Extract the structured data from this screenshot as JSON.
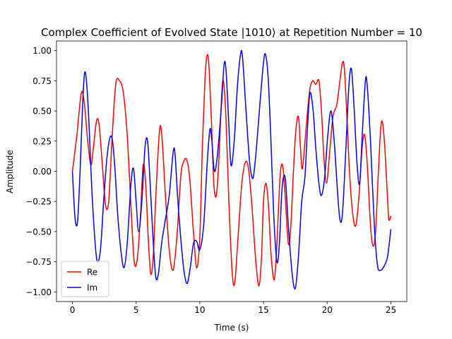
{
  "chart_data": {
    "type": "line",
    "title": "Complex Coefficient of Evolved State |1010⟩ at Repetition Number = 10",
    "xlabel": "Time (s)",
    "ylabel": "Amplitude",
    "xlim": [
      -1.25,
      26.25
    ],
    "ylim": [
      -1.08,
      1.08
    ],
    "xticks": [
      0,
      5,
      10,
      15,
      20,
      25
    ],
    "xtick_labels": [
      "0",
      "5",
      "10",
      "15",
      "20",
      "25"
    ],
    "yticks": [
      -1.0,
      -0.75,
      -0.5,
      -0.25,
      0.0,
      0.25,
      0.5,
      0.75,
      1.0
    ],
    "ytick_labels": [
      "−1.00",
      "−0.75",
      "−0.50",
      "−0.25",
      "0.00",
      "0.25",
      "0.50",
      "0.75",
      "1.00"
    ],
    "grid": false,
    "legend_position": "lower-left",
    "series": [
      {
        "name": "Re",
        "color": "#ff0000",
        "points": [
          [
            0,
            0
          ],
          [
            0.35,
            0.3
          ],
          [
            0.7,
            0.65
          ],
          [
            0.95,
            0.55
          ],
          [
            1.2,
            0.25
          ],
          [
            1.45,
            0.05
          ],
          [
            1.65,
            0.2
          ],
          [
            1.9,
            0.42
          ],
          [
            2.1,
            0.38
          ],
          [
            2.35,
            0.05
          ],
          [
            2.6,
            -0.28
          ],
          [
            2.85,
            -0.25
          ],
          [
            3.1,
            0.25
          ],
          [
            3.4,
            0.72
          ],
          [
            3.7,
            0.75
          ],
          [
            4.0,
            0.65
          ],
          [
            4.3,
            0.3
          ],
          [
            4.6,
            -0.3
          ],
          [
            4.85,
            -0.75
          ],
          [
            5.1,
            -0.72
          ],
          [
            5.35,
            -0.35
          ],
          [
            5.55,
            0.05
          ],
          [
            5.75,
            -0.1
          ],
          [
            5.95,
            -0.55
          ],
          [
            6.15,
            -0.85
          ],
          [
            6.35,
            -0.7
          ],
          [
            6.55,
            -0.2
          ],
          [
            6.85,
            0.35
          ],
          [
            7.05,
            0.25
          ],
          [
            7.3,
            -0.2
          ],
          [
            7.6,
            -0.65
          ],
          [
            7.9,
            -0.82
          ],
          [
            8.2,
            -0.55
          ],
          [
            8.5,
            -0.05
          ],
          [
            8.7,
            0.07
          ],
          [
            8.95,
            0.1
          ],
          [
            9.2,
            -0.05
          ],
          [
            9.5,
            -0.5
          ],
          [
            9.75,
            -0.8
          ],
          [
            10.0,
            -0.55
          ],
          [
            10.2,
            0.2
          ],
          [
            10.4,
            0.75
          ],
          [
            10.55,
            0.95
          ],
          [
            10.7,
            0.9
          ],
          [
            10.9,
            0.45
          ],
          [
            11.1,
            -0.1
          ],
          [
            11.3,
            -0.2
          ],
          [
            11.5,
            0.1
          ],
          [
            11.7,
            0.6
          ],
          [
            11.85,
            0.75
          ],
          [
            12.05,
            0.45
          ],
          [
            12.3,
            -0.3
          ],
          [
            12.55,
            -0.85
          ],
          [
            12.75,
            -0.92
          ],
          [
            13.0,
            -0.55
          ],
          [
            13.3,
            -0.1
          ],
          [
            13.6,
            0.08
          ],
          [
            13.85,
            0.0
          ],
          [
            14.1,
            -0.3
          ],
          [
            14.4,
            -0.75
          ],
          [
            14.65,
            -0.95
          ],
          [
            14.85,
            -0.7
          ],
          [
            15.0,
            -0.25
          ],
          [
            15.2,
            -0.1
          ],
          [
            15.4,
            -0.3
          ],
          [
            15.6,
            -0.7
          ],
          [
            15.85,
            -0.9
          ],
          [
            16.05,
            -0.6
          ],
          [
            16.3,
            -0.05
          ],
          [
            16.5,
            0.05
          ],
          [
            16.7,
            -0.2
          ],
          [
            16.95,
            -0.6
          ],
          [
            17.15,
            -0.45
          ],
          [
            17.35,
            0.0
          ],
          [
            17.55,
            0.35
          ],
          [
            17.75,
            0.45
          ],
          [
            17.9,
            0.2
          ],
          [
            18.05,
            0.02
          ],
          [
            18.3,
            0.3
          ],
          [
            18.6,
            0.65
          ],
          [
            18.85,
            0.75
          ],
          [
            19.1,
            0.72
          ],
          [
            19.35,
            0.75
          ],
          [
            19.55,
            0.5
          ],
          [
            19.75,
            0.1
          ],
          [
            19.95,
            -0.1
          ],
          [
            20.15,
            0.1
          ],
          [
            20.45,
            0.45
          ],
          [
            20.75,
            0.55
          ],
          [
            21.0,
            0.75
          ],
          [
            21.2,
            0.9
          ],
          [
            21.35,
            0.85
          ],
          [
            21.55,
            0.45
          ],
          [
            21.75,
            0.0
          ],
          [
            22.0,
            -0.35
          ],
          [
            22.25,
            -0.45
          ],
          [
            22.5,
            -0.2
          ],
          [
            22.75,
            0.2
          ],
          [
            22.95,
            0.3
          ],
          [
            23.15,
            0.05
          ],
          [
            23.4,
            -0.45
          ],
          [
            23.6,
            -0.62
          ],
          [
            23.8,
            -0.5
          ],
          [
            24.0,
            -0.05
          ],
          [
            24.2,
            0.35
          ],
          [
            24.35,
            0.4
          ],
          [
            24.55,
            0.15
          ],
          [
            24.8,
            -0.35
          ],
          [
            24.9,
            -0.4
          ],
          [
            25.0,
            -0.37
          ]
        ]
      },
      {
        "name": "Im",
        "color": "#0000ff",
        "points": [
          [
            0,
            0
          ],
          [
            0.2,
            -0.38
          ],
          [
            0.4,
            -0.42
          ],
          [
            0.6,
            0.0
          ],
          [
            0.8,
            0.55
          ],
          [
            0.95,
            0.81
          ],
          [
            1.1,
            0.75
          ],
          [
            1.3,
            0.4
          ],
          [
            1.5,
            -0.1
          ],
          [
            1.75,
            -0.55
          ],
          [
            1.95,
            -0.75
          ],
          [
            2.2,
            -0.65
          ],
          [
            2.45,
            -0.25
          ],
          [
            2.7,
            0.1
          ],
          [
            2.95,
            0.28
          ],
          [
            3.15,
            0.25
          ],
          [
            3.35,
            0.0
          ],
          [
            3.55,
            -0.35
          ],
          [
            3.8,
            -0.65
          ],
          [
            4.05,
            -0.8
          ],
          [
            4.3,
            -0.6
          ],
          [
            4.6,
            -0.1
          ],
          [
            4.8,
            0.02
          ],
          [
            5.0,
            -0.25
          ],
          [
            5.2,
            -0.5
          ],
          [
            5.45,
            -0.25
          ],
          [
            5.7,
            0.2
          ],
          [
            5.9,
            0.25
          ],
          [
            6.1,
            -0.1
          ],
          [
            6.35,
            -0.6
          ],
          [
            6.55,
            -0.88
          ],
          [
            6.75,
            -0.85
          ],
          [
            7.0,
            -0.6
          ],
          [
            7.3,
            -0.4
          ],
          [
            7.6,
            -0.2
          ],
          [
            7.9,
            0.15
          ],
          [
            8.05,
            0.15
          ],
          [
            8.25,
            -0.2
          ],
          [
            8.5,
            -0.55
          ],
          [
            8.75,
            -0.82
          ],
          [
            9.0,
            -0.93
          ],
          [
            9.25,
            -0.8
          ],
          [
            9.5,
            -0.6
          ],
          [
            9.75,
            -0.58
          ],
          [
            10.0,
            -0.65
          ],
          [
            10.3,
            -0.45
          ],
          [
            10.6,
            0.1
          ],
          [
            10.8,
            0.35
          ],
          [
            10.95,
            0.25
          ],
          [
            11.15,
            0.0
          ],
          [
            11.4,
            0.15
          ],
          [
            11.7,
            0.55
          ],
          [
            11.9,
            0.88
          ],
          [
            12.05,
            0.85
          ],
          [
            12.25,
            0.45
          ],
          [
            12.45,
            0.05
          ],
          [
            12.7,
            0.25
          ],
          [
            12.95,
            0.7
          ],
          [
            13.2,
            0.97
          ],
          [
            13.35,
            0.95
          ],
          [
            13.6,
            0.55
          ],
          [
            13.85,
            0.15
          ],
          [
            14.0,
            0.0
          ],
          [
            14.2,
            -0.05
          ],
          [
            14.45,
            0.2
          ],
          [
            14.75,
            0.6
          ],
          [
            15.0,
            0.9
          ],
          [
            15.15,
            0.97
          ],
          [
            15.35,
            0.8
          ],
          [
            15.55,
            0.35
          ],
          [
            15.8,
            -0.35
          ],
          [
            16.05,
            -0.75
          ],
          [
            16.25,
            -0.6
          ],
          [
            16.45,
            -0.15
          ],
          [
            16.7,
            -0.05
          ],
          [
            16.95,
            -0.45
          ],
          [
            17.25,
            -0.85
          ],
          [
            17.5,
            -0.97
          ],
          [
            17.75,
            -0.7
          ],
          [
            18.0,
            -0.25
          ],
          [
            18.25,
            -0.05
          ],
          [
            18.45,
            0.35
          ],
          [
            18.65,
            0.65
          ],
          [
            18.9,
            0.5
          ],
          [
            19.1,
            0.2
          ],
          [
            19.35,
            -0.1
          ],
          [
            19.55,
            -0.2
          ],
          [
            19.8,
            -0.05
          ],
          [
            20.05,
            0.3
          ],
          [
            20.3,
            0.5
          ],
          [
            20.55,
            0.25
          ],
          [
            20.8,
            -0.15
          ],
          [
            21.0,
            -0.4
          ],
          [
            21.2,
            -0.35
          ],
          [
            21.45,
            0.15
          ],
          [
            21.7,
            0.7
          ],
          [
            21.9,
            0.85
          ],
          [
            22.1,
            0.55
          ],
          [
            22.35,
            0.05
          ],
          [
            22.55,
            -0.1
          ],
          [
            22.75,
            0.3
          ],
          [
            23.0,
            0.75
          ],
          [
            23.15,
            0.7
          ],
          [
            23.4,
            0.25
          ],
          [
            23.7,
            -0.45
          ],
          [
            23.95,
            -0.78
          ],
          [
            24.2,
            -0.82
          ],
          [
            24.5,
            -0.78
          ],
          [
            24.75,
            -0.7
          ],
          [
            25.0,
            -0.48
          ]
        ]
      }
    ]
  }
}
